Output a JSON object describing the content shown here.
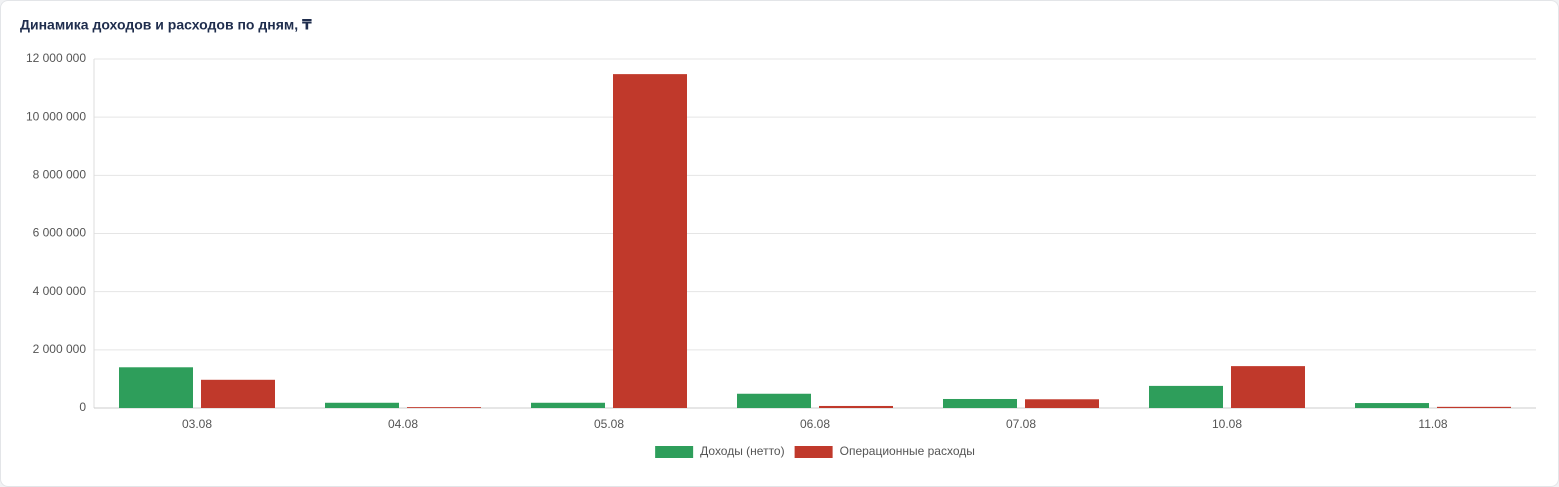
{
  "chart_data": {
    "type": "bar",
    "title": "Динамика доходов и расходов по дням, ₸",
    "categories": [
      "03.08",
      "04.08",
      "05.08",
      "06.08",
      "07.08",
      "10.08",
      "11.08"
    ],
    "series": [
      {
        "name": "Доходы (нетто)",
        "color": "#2e9e5b",
        "values": [
          1400000,
          180000,
          180000,
          490000,
          310000,
          760000,
          170000
        ]
      },
      {
        "name": "Операционные расходы",
        "color": "#c0392b",
        "values": [
          970000,
          30000,
          11480000,
          70000,
          300000,
          1440000,
          40000
        ]
      }
    ],
    "ylim": [
      0,
      12000000
    ],
    "yticks": [
      0,
      {
        "value": 2000000,
        "label": "2 000 000"
      },
      {
        "value": 4000000,
        "label": "4 000 000"
      },
      {
        "value": 6000000,
        "label": "6 000 000"
      },
      {
        "value": 8000000,
        "label": "8 000 000"
      },
      {
        "value": 10000000,
        "label": "10 000 000"
      },
      {
        "value": 12000000,
        "label": "12 000 000"
      }
    ],
    "grid": true,
    "legend": "bottom"
  }
}
